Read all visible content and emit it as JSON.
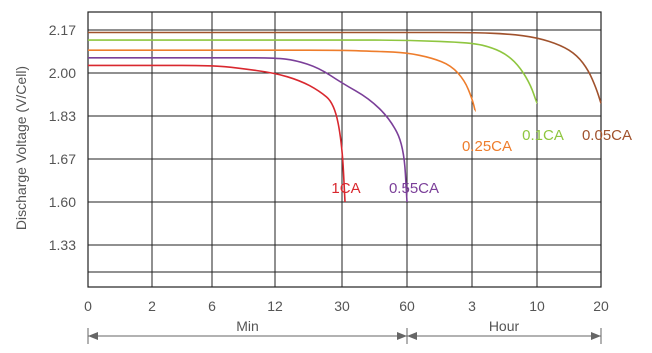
{
  "chart_data": {
    "type": "line",
    "title": "",
    "xlabel": "",
    "ylabel": "Discharge Voltage (V/Cell)",
    "grid": true,
    "legend": "none",
    "x_ticks": [
      "0",
      "2",
      "6",
      "12",
      "30",
      "60",
      "3",
      "10",
      "20"
    ],
    "y_ticks": [
      "2.17",
      "2.00",
      "1.83",
      "1.67",
      "1.60",
      "1.33"
    ],
    "x_units": [
      {
        "label": "Min",
        "from_tick": 0,
        "to_tick": 5
      },
      {
        "label": "Hour",
        "from_tick": 5,
        "to_tick": 8
      }
    ],
    "series": [
      {
        "name": "1CA",
        "color": "#d9282f",
        "points": [
          [
            0,
            2.03
          ],
          [
            2,
            2.03
          ],
          [
            6,
            2.03
          ],
          [
            8,
            2.02
          ],
          [
            12,
            2.0
          ],
          [
            17,
            1.97
          ],
          [
            22,
            1.93
          ],
          [
            27,
            1.88
          ],
          [
            30,
            1.73
          ],
          [
            31,
            1.6
          ]
        ]
      },
      {
        "name": "0.55CA",
        "color": "#7b3f99",
        "points": [
          [
            0,
            2.06
          ],
          [
            2,
            2.06
          ],
          [
            6,
            2.06
          ],
          [
            12,
            2.06
          ],
          [
            16,
            2.05
          ],
          [
            22,
            2.02
          ],
          [
            30,
            1.96
          ],
          [
            40,
            1.9
          ],
          [
            50,
            1.82
          ],
          [
            58,
            1.72
          ],
          [
            61,
            1.6
          ]
        ]
      },
      {
        "name": "0.25CA",
        "color": "#ee7d2c",
        "points": [
          [
            0,
            2.09
          ],
          [
            2,
            2.09
          ],
          [
            6,
            2.09
          ],
          [
            12,
            2.09
          ],
          [
            30,
            2.09
          ],
          [
            45,
            2.085
          ],
          [
            60,
            2.08
          ],
          [
            1.6,
            2.06
          ],
          [
            2.2,
            2.03
          ],
          [
            2.7,
            1.97
          ],
          [
            3.0,
            1.9
          ],
          [
            3.2,
            1.85
          ]
        ]
      },
      {
        "name": "0.1CA",
        "color": "#8fc640",
        "points": [
          [
            0,
            2.13
          ],
          [
            2,
            2.13
          ],
          [
            6,
            2.13
          ],
          [
            12,
            2.13
          ],
          [
            30,
            2.13
          ],
          [
            60,
            2.13
          ],
          [
            3,
            2.12
          ],
          [
            4.5,
            2.1
          ],
          [
            6,
            2.07
          ],
          [
            7.5,
            2.02
          ],
          [
            9,
            1.95
          ],
          [
            10,
            1.88
          ]
        ]
      },
      {
        "name": "0.05CA",
        "color": "#a0522d",
        "points": [
          [
            0,
            2.16
          ],
          [
            2,
            2.16
          ],
          [
            6,
            2.16
          ],
          [
            12,
            2.16
          ],
          [
            30,
            2.16
          ],
          [
            60,
            2.16
          ],
          [
            3,
            2.16
          ],
          [
            6,
            2.155
          ],
          [
            10,
            2.14
          ],
          [
            13,
            2.11
          ],
          [
            15.5,
            2.07
          ],
          [
            17.5,
            2.01
          ],
          [
            19,
            1.94
          ],
          [
            20,
            1.88
          ]
        ]
      }
    ]
  }
}
